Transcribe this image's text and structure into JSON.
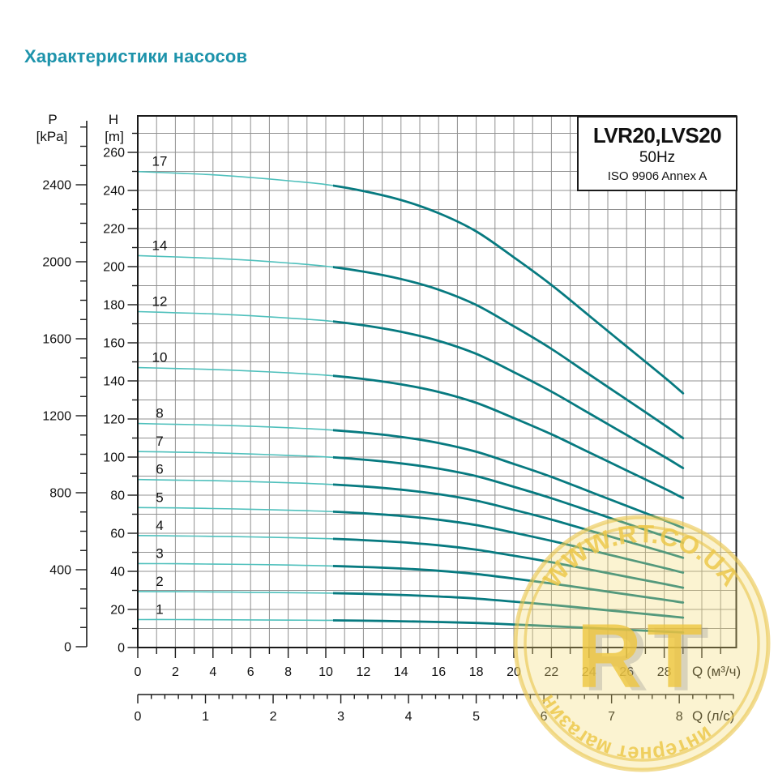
{
  "page": {
    "title": "Характеристики насосов"
  },
  "info_box": {
    "model": "LVR20,LVS20",
    "frequency": "50Hz",
    "standard": "ISO 9906 Annex A"
  },
  "axes": {
    "pressure": {
      "name": "P",
      "unit": "[kPa]",
      "tick_labels": [
        2400,
        2000,
        1600,
        1200,
        800,
        400,
        0
      ]
    },
    "head": {
      "name": "H",
      "unit": "[m]",
      "tick_labels": [
        260,
        240,
        220,
        200,
        180,
        160,
        140,
        120,
        100,
        80,
        60,
        40,
        20,
        0
      ]
    },
    "flow_m3h": {
      "unit_label": "Q (м³/ч)",
      "tick_labels": [
        0,
        2,
        4,
        6,
        8,
        10,
        12,
        14,
        16,
        18,
        20,
        22,
        24,
        26,
        28
      ]
    },
    "flow_ls": {
      "unit_label": "Q (л/с)",
      "tick_labels": [
        0,
        1,
        2,
        3,
        4,
        5,
        6,
        7,
        8
      ]
    }
  },
  "watermark": {
    "url": "WWW.RT.CO.UA",
    "shop_label": "интернет магазин",
    "initials": "RT",
    "color": "#ecc84b"
  },
  "colors": {
    "title": "#1d93ab",
    "curve_light": "#4fc0bc",
    "curve_dark": "#077a80",
    "grid": "#909090",
    "axis": "#1a1a1a"
  },
  "chart_data": {
    "type": "line",
    "title": "LVR20,LVS20 50Hz ISO 9906 Annex A",
    "xlabel": "Q [м³/ч]",
    "ylabel": "H [m]",
    "y2label": "P [kPa]",
    "x2label": "Q [л/с]",
    "xlim": [
      0,
      32
    ],
    "ylim": [
      0,
      280
    ],
    "grid": true,
    "legend_position": "labels above each curve at left (number of stages)",
    "bold_from_q": 10.4,
    "curve_end_q": 29,
    "q_values": [
      0,
      2,
      4,
      6,
      8,
      10,
      12,
      14,
      16,
      18,
      20,
      22,
      24,
      26,
      28,
      29
    ],
    "series": [
      {
        "name": "17",
        "stages": 17,
        "H": [
          249.9,
          249.1,
          248.2,
          246.8,
          245.1,
          243.1,
          239.7,
          235.0,
          228.1,
          218.5,
          204.9,
          190.4,
          174.3,
          158.1,
          142.0,
          133.5
        ]
      },
      {
        "name": "14",
        "stages": 14,
        "H": [
          205.8,
          205.1,
          204.4,
          203.3,
          201.9,
          200.2,
          197.4,
          193.5,
          187.9,
          179.9,
          168.7,
          156.8,
          143.5,
          130.2,
          116.9,
          109.9
        ]
      },
      {
        "name": "12",
        "stages": 12,
        "H": [
          176.4,
          175.8,
          175.2,
          174.2,
          173.0,
          171.6,
          169.2,
          165.8,
          161.0,
          154.2,
          144.6,
          134.4,
          123.0,
          111.6,
          100.2,
          94.2
        ]
      },
      {
        "name": "10",
        "stages": 10,
        "H": [
          147.0,
          146.5,
          146.0,
          145.2,
          144.2,
          143.0,
          141.0,
          138.2,
          134.2,
          128.5,
          120.5,
          112.0,
          102.5,
          93.0,
          83.5,
          78.5
        ]
      },
      {
        "name": "8",
        "stages": 8,
        "H": [
          117.6,
          117.2,
          116.8,
          116.2,
          115.4,
          114.4,
          112.8,
          110.6,
          107.4,
          102.8,
          96.4,
          89.6,
          82.0,
          74.4,
          66.8,
          62.8
        ]
      },
      {
        "name": "7",
        "stages": 7,
        "H": [
          102.9,
          102.6,
          102.2,
          101.6,
          100.9,
          100.1,
          98.7,
          96.7,
          93.9,
          90.0,
          84.4,
          78.4,
          71.8,
          65.1,
          58.5,
          55.0
        ]
      },
      {
        "name": "6",
        "stages": 6,
        "H": [
          88.2,
          87.9,
          87.6,
          87.1,
          86.5,
          85.8,
          84.6,
          82.9,
          80.5,
          77.1,
          72.3,
          67.2,
          61.5,
          55.8,
          50.1,
          47.1
        ]
      },
      {
        "name": "5",
        "stages": 5,
        "H": [
          73.5,
          73.3,
          73.0,
          72.6,
          72.1,
          71.5,
          70.5,
          69.1,
          67.1,
          64.3,
          60.3,
          56.0,
          51.3,
          46.5,
          41.8,
          39.3
        ]
      },
      {
        "name": "4",
        "stages": 4,
        "H": [
          58.8,
          58.6,
          58.4,
          58.1,
          57.7,
          57.2,
          56.4,
          55.3,
          53.7,
          51.4,
          48.2,
          44.8,
          41.0,
          37.2,
          33.4,
          31.4
        ]
      },
      {
        "name": "3",
        "stages": 3,
        "H": [
          44.1,
          44.0,
          43.8,
          43.6,
          43.3,
          42.9,
          42.3,
          41.5,
          40.3,
          38.6,
          36.2,
          33.6,
          30.8,
          27.9,
          25.1,
          23.6
        ]
      },
      {
        "name": "2",
        "stages": 2,
        "H": [
          29.4,
          29.3,
          29.2,
          29.0,
          28.8,
          28.6,
          28.2,
          27.6,
          26.8,
          25.7,
          24.1,
          22.4,
          20.5,
          18.6,
          16.7,
          15.7
        ]
      },
      {
        "name": "1",
        "stages": 1,
        "H": [
          14.7,
          14.7,
          14.6,
          14.5,
          14.4,
          14.3,
          14.1,
          13.8,
          13.4,
          12.9,
          12.1,
          11.2,
          10.3,
          9.3,
          8.4,
          7.9
        ]
      }
    ]
  }
}
